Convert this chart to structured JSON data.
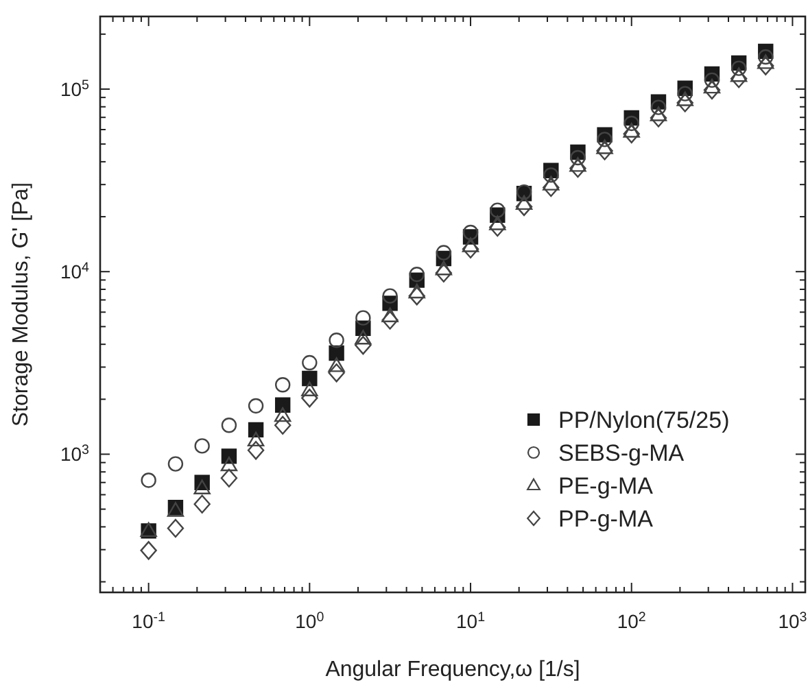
{
  "chart_data": {
    "type": "scatter",
    "xlabel": "Angular Frequency,ω [1/s]",
    "ylabel": "Storage Modulus, G' [Pa]",
    "log": "xy",
    "grid": false,
    "legend": "bottom right",
    "x": [
      0.1,
      0.147,
      0.215,
      0.316,
      0.464,
      0.681,
      1,
      1.47,
      2.15,
      3.16,
      4.64,
      6.81,
      10,
      14.7,
      21.5,
      31.6,
      46.4,
      68.1,
      100,
      147,
      215,
      316,
      464,
      681
    ],
    "xlim": [
      0.05,
      1200
    ],
    "ylim": [
      175,
      250000
    ],
    "xticks": [
      {
        "value": 0.06,
        "label": null
      },
      {
        "value": 0.07,
        "label": null
      },
      {
        "value": 0.08,
        "label": null
      },
      {
        "value": 0.09,
        "label": null
      },
      {
        "value": 0.1,
        "label": "10$^{-1}$"
      },
      {
        "value": 0.2,
        "label": null
      },
      {
        "value": 0.3,
        "label": null
      },
      {
        "value": 0.4,
        "label": null
      },
      {
        "value": 0.5,
        "label": null
      },
      {
        "value": 0.6,
        "label": null
      },
      {
        "value": 0.7,
        "label": null
      },
      {
        "value": 0.8,
        "label": null
      },
      {
        "value": 0.9,
        "label": null
      },
      {
        "value": 1,
        "label": "10$^{0}$"
      },
      {
        "value": 2,
        "label": null
      },
      {
        "value": 3,
        "label": null
      },
      {
        "value": 4,
        "label": null
      },
      {
        "value": 5,
        "label": null
      },
      {
        "value": 6,
        "label": null
      },
      {
        "value": 7,
        "label": null
      },
      {
        "value": 8,
        "label": null
      },
      {
        "value": 9,
        "label": null
      },
      {
        "value": 10,
        "label": "10$^{1}$"
      },
      {
        "value": 20,
        "label": null
      },
      {
        "value": 30,
        "label": null
      },
      {
        "value": 40,
        "label": null
      },
      {
        "value": 50,
        "label": null
      },
      {
        "value": 60,
        "label": null
      },
      {
        "value": 70,
        "label": null
      },
      {
        "value": 80,
        "label": null
      },
      {
        "value": 90,
        "label": null
      },
      {
        "value": 100,
        "label": "10$^{2}$"
      },
      {
        "value": 200,
        "label": null
      },
      {
        "value": 300,
        "label": null
      },
      {
        "value": 400,
        "label": null
      },
      {
        "value": 500,
        "label": null
      },
      {
        "value": 600,
        "label": null
      },
      {
        "value": 700,
        "label": null
      },
      {
        "value": 800,
        "label": null
      },
      {
        "value": 900,
        "label": null
      },
      {
        "value": 1000,
        "label": "10$^{3}$"
      }
    ],
    "yticks": [
      {
        "value": 200,
        "label": null
      },
      {
        "value": 300,
        "label": null
      },
      {
        "value": 400,
        "label": null
      },
      {
        "value": 500,
        "label": null
      },
      {
        "value": 600,
        "label": null
      },
      {
        "value": 700,
        "label": null
      },
      {
        "value": 800,
        "label": null
      },
      {
        "value": 900,
        "label": null
      },
      {
        "value": 1000,
        "label": "10$^{3}$"
      },
      {
        "value": 2000,
        "label": null
      },
      {
        "value": 3000,
        "label": null
      },
      {
        "value": 4000,
        "label": null
      },
      {
        "value": 5000,
        "label": null
      },
      {
        "value": 6000,
        "label": null
      },
      {
        "value": 7000,
        "label": null
      },
      {
        "value": 8000,
        "label": null
      },
      {
        "value": 9000,
        "label": null
      },
      {
        "value": 10000,
        "label": "10$^{4}$"
      },
      {
        "value": 20000,
        "label": null
      },
      {
        "value": 30000,
        "label": null
      },
      {
        "value": 40000,
        "label": null
      },
      {
        "value": 50000,
        "label": null
      },
      {
        "value": 60000,
        "label": null
      },
      {
        "value": 70000,
        "label": null
      },
      {
        "value": 80000,
        "label": null
      },
      {
        "value": 90000,
        "label": null
      },
      {
        "value": 100000,
        "label": "10$^{5}$"
      },
      {
        "value": 200000,
        "label": null
      }
    ],
    "series": [
      {
        "name": "PP/Nylon(75/25)",
        "color": "#1a1a1a",
        "marker": "square",
        "values": [
          380,
          510,
          700,
          975,
          1360,
          1860,
          2600,
          3580,
          4900,
          6710,
          8980,
          11800,
          15500,
          20400,
          26800,
          35800,
          45100,
          56200,
          69500,
          85100,
          101000,
          121000,
          139000,
          161000
        ]
      },
      {
        "name": "SEBS-g-MA",
        "color": "#444444",
        "marker": "circle",
        "values": [
          720,
          885,
          1110,
          1440,
          1840,
          2400,
          3170,
          4210,
          5580,
          7360,
          9660,
          12700,
          16400,
          21700,
          27300,
          33800,
          42100,
          53000,
          64900,
          79400,
          94400,
          112000,
          130000,
          150000
        ]
      },
      {
        "name": "PE-g-MA",
        "color": "#444444",
        "marker": "triangle",
        "values": [
          380,
          490,
          650,
          870,
          1190,
          1620,
          2240,
          3040,
          4300,
          5700,
          7700,
          10300,
          13800,
          18200,
          23500,
          30000,
          38000,
          47500,
          58500,
          72000,
          87000,
          102000,
          118000,
          139000
        ]
      },
      {
        "name": "PP-g-MA",
        "color": "#444444",
        "marker": "diamond",
        "values": [
          297,
          393,
          533,
          740,
          1050,
          1440,
          2030,
          2790,
          3950,
          5420,
          7360,
          9820,
          13300,
          17500,
          22700,
          28900,
          36800,
          45900,
          56800,
          69500,
          84100,
          98800,
          114000,
          134000
        ]
      }
    ]
  }
}
